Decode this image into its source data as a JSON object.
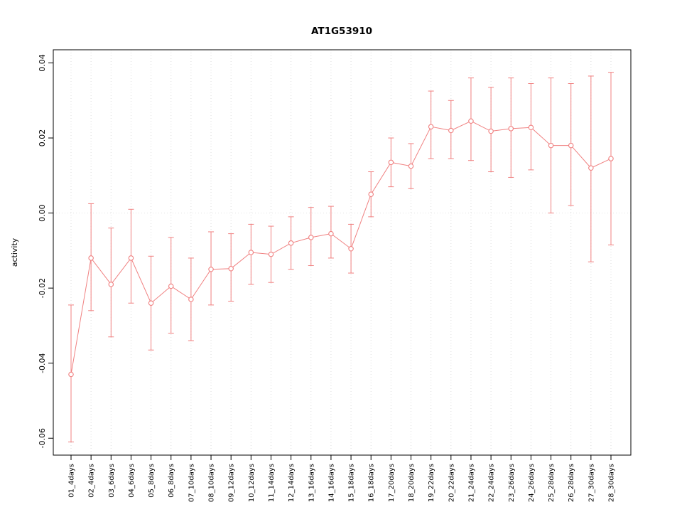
{
  "chart_data": {
    "type": "line",
    "title": "AT1G53910",
    "xlabel": "",
    "ylabel": "activity",
    "ylim": [
      -0.0645,
      0.0435
    ],
    "yticks": [
      -0.06,
      -0.04,
      -0.02,
      0.0,
      0.02,
      0.04
    ],
    "ytick_labels": [
      "-0.06",
      "-0.04",
      "-0.02",
      "0.00",
      "0.02",
      "0.04"
    ],
    "grid": "dotted vertical line at each category; dotted horizontal line at y=0",
    "legend": "none",
    "point_style": "open circles with error bars, connected by line",
    "point_color": "#f08080",
    "grid_color": "#dcdcdc",
    "zero_line_color": "#e4e4e4",
    "frame_color": "#000000",
    "categories": [
      "01_4days",
      "02_4days",
      "03_6days",
      "04_6days",
      "05_8days",
      "06_8days",
      "07_10days",
      "08_10days",
      "09_12days",
      "10_12days",
      "11_14days",
      "12_14days",
      "13_16days",
      "14_16days",
      "15_18days",
      "16_18days",
      "17_20days",
      "18_20days",
      "19_22days",
      "20_22days",
      "21_24days",
      "22_24days",
      "23_26days",
      "24_26days",
      "25_28days",
      "26_28days",
      "27_30days",
      "28_30days"
    ],
    "series": [
      {
        "name": "mean",
        "values": [
          -0.043,
          -0.012,
          -0.019,
          -0.012,
          -0.024,
          -0.0195,
          -0.023,
          -0.015,
          -0.0148,
          -0.0105,
          -0.011,
          -0.008,
          -0.0065,
          -0.0055,
          -0.0095,
          0.005,
          0.0135,
          0.0125,
          0.023,
          0.022,
          0.0245,
          0.0218,
          0.0225,
          0.0228,
          0.018,
          0.018,
          0.012,
          0.0145
        ]
      },
      {
        "name": "lower",
        "values": [
          -0.061,
          -0.026,
          -0.033,
          -0.024,
          -0.0365,
          -0.032,
          -0.034,
          -0.0245,
          -0.0235,
          -0.019,
          -0.0185,
          -0.015,
          -0.014,
          -0.012,
          -0.016,
          -0.001,
          0.007,
          0.0065,
          0.0145,
          0.0145,
          0.014,
          0.011,
          0.0095,
          0.0115,
          0.0,
          0.002,
          -0.013,
          -0.0085
        ]
      },
      {
        "name": "upper",
        "values": [
          -0.0245,
          0.0025,
          -0.004,
          0.001,
          -0.0115,
          -0.0065,
          -0.012,
          -0.005,
          -0.0055,
          -0.003,
          -0.0035,
          -0.001,
          0.0015,
          0.0018,
          -0.003,
          0.011,
          0.02,
          0.0185,
          0.0325,
          0.03,
          0.036,
          0.0335,
          0.036,
          0.0345,
          0.036,
          0.0345,
          0.0365,
          0.0375
        ]
      }
    ]
  }
}
